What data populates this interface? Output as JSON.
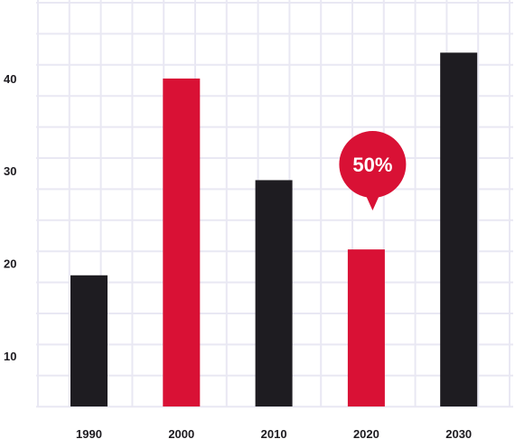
{
  "colors": {
    "dark": "#1e1c21",
    "accent": "#d91135",
    "grid": "#e9e8f3",
    "text": "#1d1b20"
  },
  "chart_data": {
    "type": "bar",
    "categories": [
      "1990",
      "2000",
      "2010",
      "2020",
      "2030"
    ],
    "values": [
      18.7,
      40,
      29,
      21.5,
      42.8
    ],
    "bar_colors": [
      "dark",
      "accent",
      "dark",
      "accent",
      "dark"
    ],
    "title": "",
    "xlabel": "",
    "ylabel": "",
    "ylim": [
      4.5,
      48.5
    ],
    "yticks": [
      10,
      20,
      30,
      40
    ],
    "grid": true,
    "legend": "none",
    "annotations": [
      {
        "category": "2020",
        "text": "50%",
        "shape": "speech-bubble"
      }
    ]
  }
}
